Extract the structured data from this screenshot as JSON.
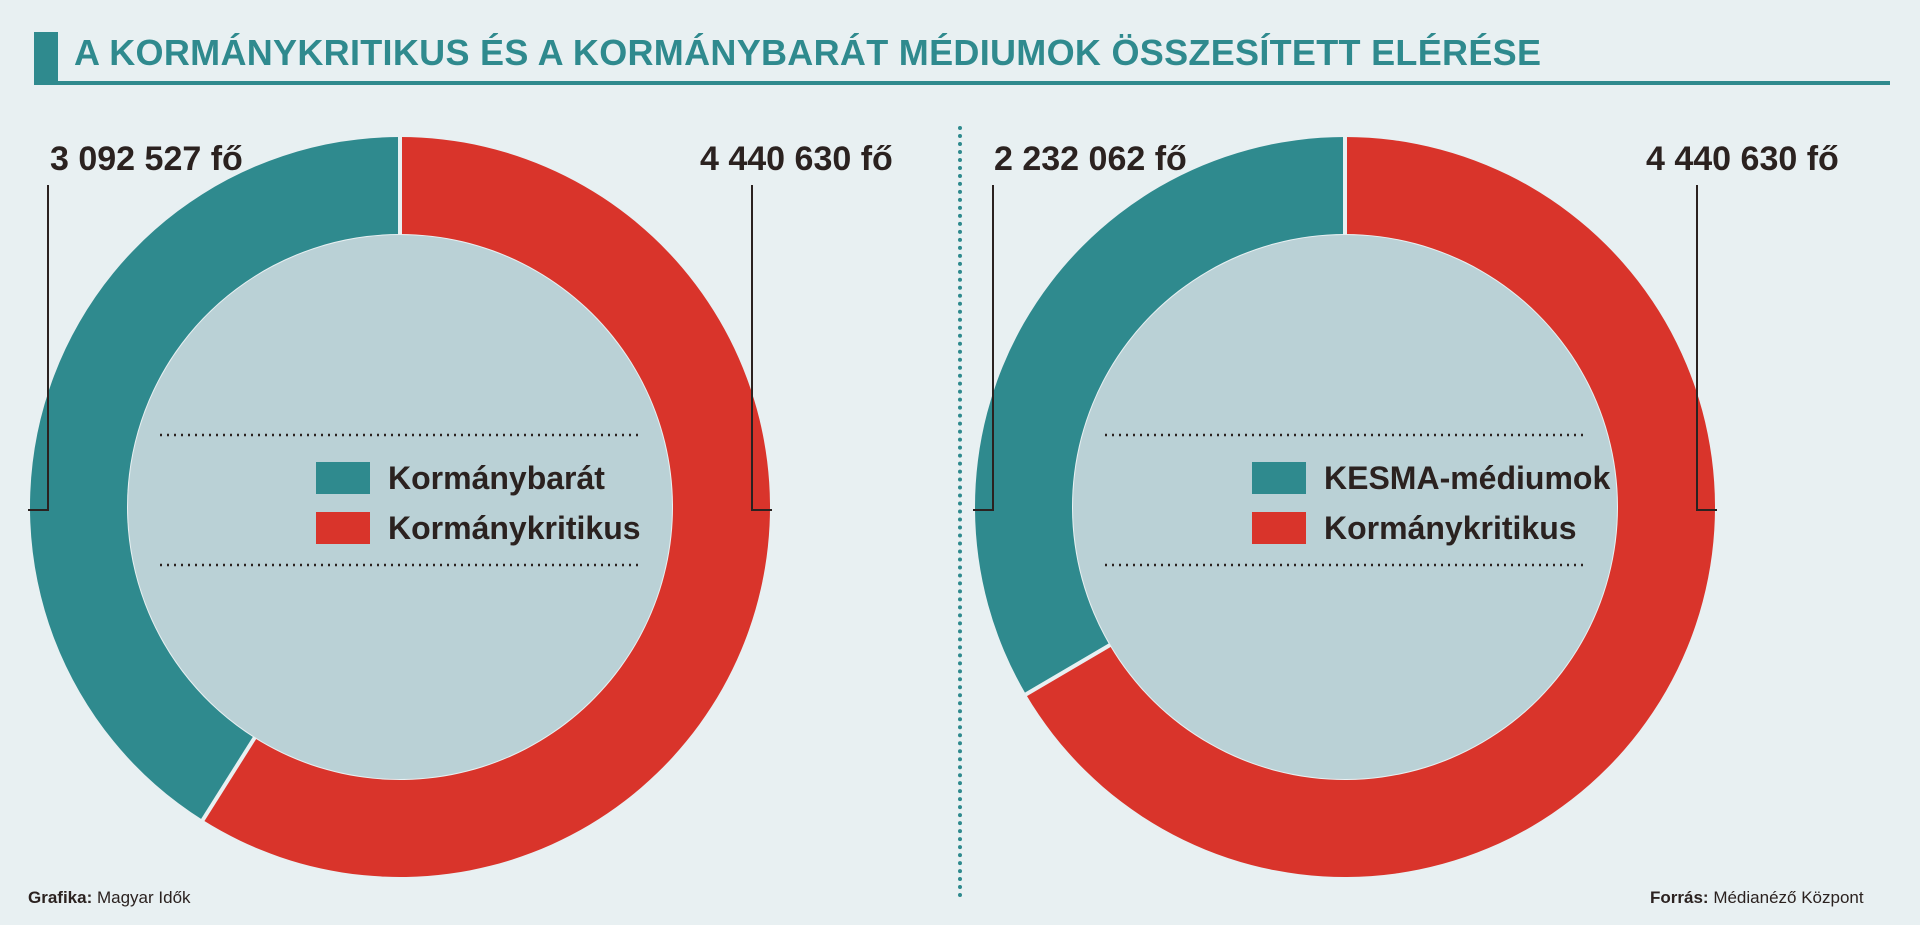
{
  "title": "A KORMÁNYKRITIKUS ÉS A KORMÁNYBARÁT MÉDIUMOK ÖSSZESÍTETT ELÉRÉSE",
  "footer": {
    "credit_label": "Grafika:",
    "credit_value": "Magyar Idők",
    "source_label": "Forrás:",
    "source_value": "Médianéző Központ"
  },
  "colors": {
    "accent": "#2f8a8e",
    "teal": "#2f8a8e",
    "red": "#d9342b",
    "inner": "#bad1d6",
    "background": "#e8f0f2"
  },
  "chart_data": [
    {
      "type": "pie",
      "values": [
        3092527,
        4440630
      ],
      "value_labels": [
        "3 092 527 fő",
        "4 440 630 fő"
      ],
      "legend": [
        "Kormánybarát",
        "Kormánykritikus"
      ],
      "colors": [
        "#2f8a8e",
        "#d9342b"
      ]
    },
    {
      "type": "pie",
      "values": [
        2232062,
        4440630
      ],
      "value_labels": [
        "2 232 062 fő",
        "4 440 630 fő"
      ],
      "legend": [
        "KESMA-médiumok",
        "Kormánykritikus"
      ],
      "colors": [
        "#2f8a8e",
        "#d9342b"
      ]
    }
  ]
}
